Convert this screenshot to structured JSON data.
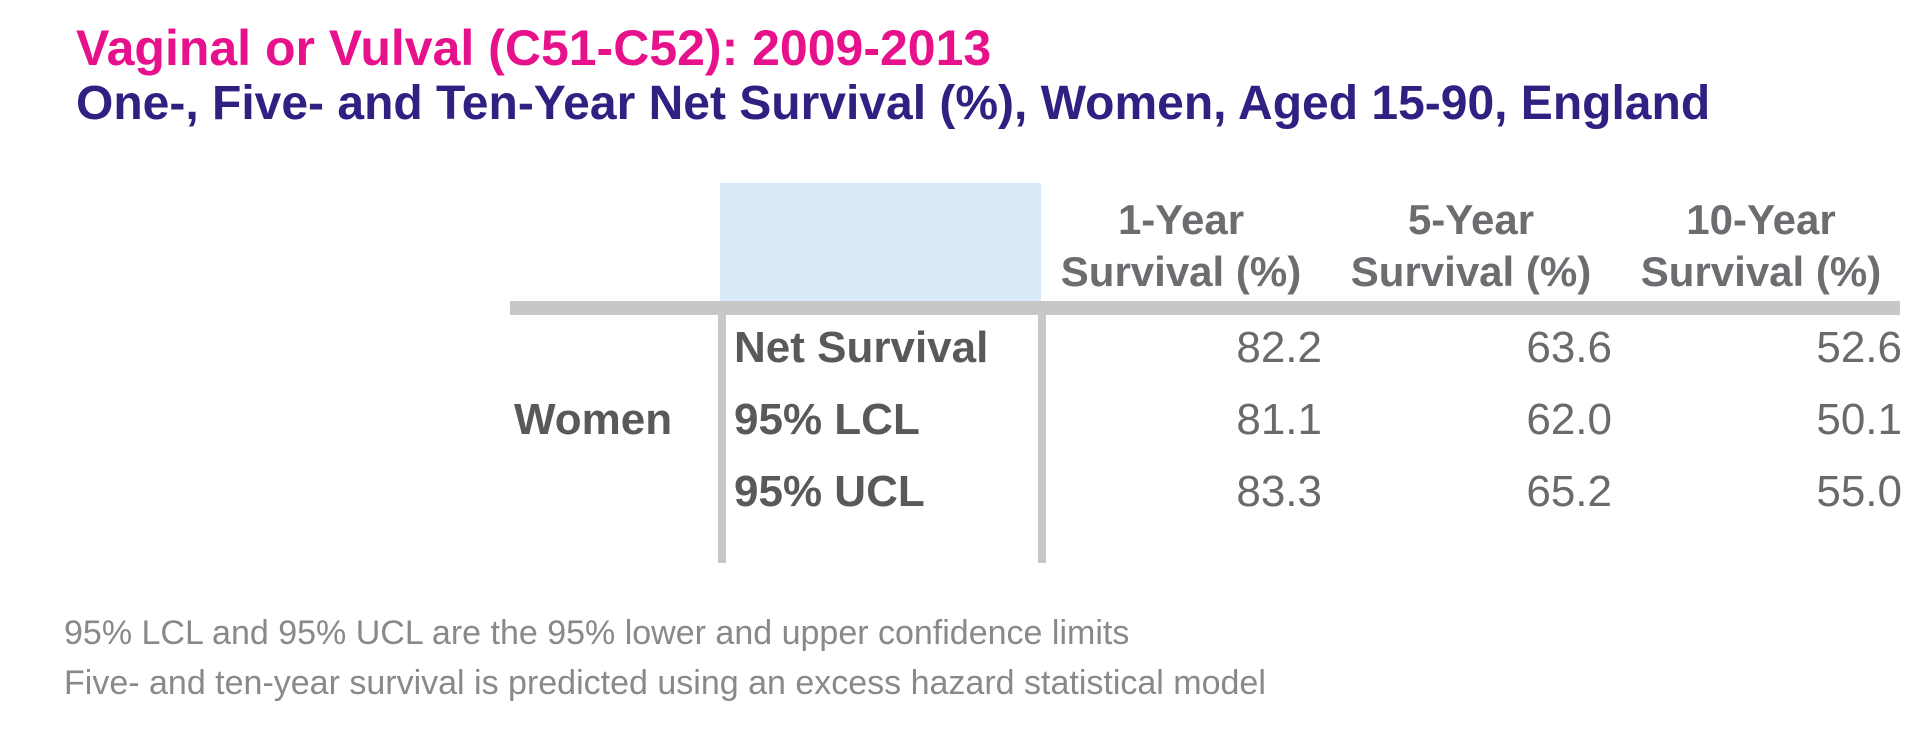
{
  "header": {
    "title": "Vaginal or Vulval (C51-C52): 2009-2013",
    "subtitle": "One-, Five- and Ten-Year Net Survival (%), Women, Aged 15-90, England"
  },
  "table": {
    "group_label": "Women",
    "columns": [
      {
        "line1": "1-Year",
        "line2": "Survival (%)"
      },
      {
        "line1": "5-Year",
        "line2": "Survival (%)"
      },
      {
        "line1": "10-Year",
        "line2": "Survival (%)"
      }
    ],
    "rows": [
      {
        "label": "Net Survival",
        "values": [
          "82.2",
          "63.6",
          "52.6"
        ]
      },
      {
        "label": "95% LCL",
        "values": [
          "81.1",
          "62.0",
          "50.1"
        ]
      },
      {
        "label": "95% UCL",
        "values": [
          "83.3",
          "65.2",
          "55.0"
        ]
      }
    ]
  },
  "footnotes": [
    "95% LCL and 95% UCL are the 95% lower and upper confidence limits",
    "Five- and ten-year survival is predicted using an excess hazard statistical model"
  ],
  "colors": {
    "title_pink": "#E8118C",
    "subtitle_navy": "#2E2182",
    "header_gray": "#6C6D70",
    "label_gray": "#58595B",
    "value_gray": "#696A6D",
    "footnote_gray": "#87898B",
    "rule_gray": "#C7C7C5",
    "highlight_blue": "#DBEAF9"
  },
  "chart_data": {
    "type": "table",
    "title": "Vaginal or Vulval (C51-C52): 2009-2013",
    "subtitle": "One-, Five- and Ten-Year Net Survival (%), Women, Aged 15-90, England",
    "group": "Women",
    "categories": [
      "1-Year Survival (%)",
      "5-Year Survival (%)",
      "10-Year Survival (%)"
    ],
    "series": [
      {
        "name": "Net Survival",
        "values": [
          82.2,
          63.6,
          52.6
        ]
      },
      {
        "name": "95% LCL",
        "values": [
          81.1,
          62.0,
          50.1
        ]
      },
      {
        "name": "95% UCL",
        "values": [
          83.3,
          65.2,
          55.0
        ]
      }
    ],
    "footnotes": [
      "95% LCL and 95% UCL are the 95% lower and upper confidence limits",
      "Five- and ten-year survival is predicted using an excess hazard statistical model"
    ]
  }
}
